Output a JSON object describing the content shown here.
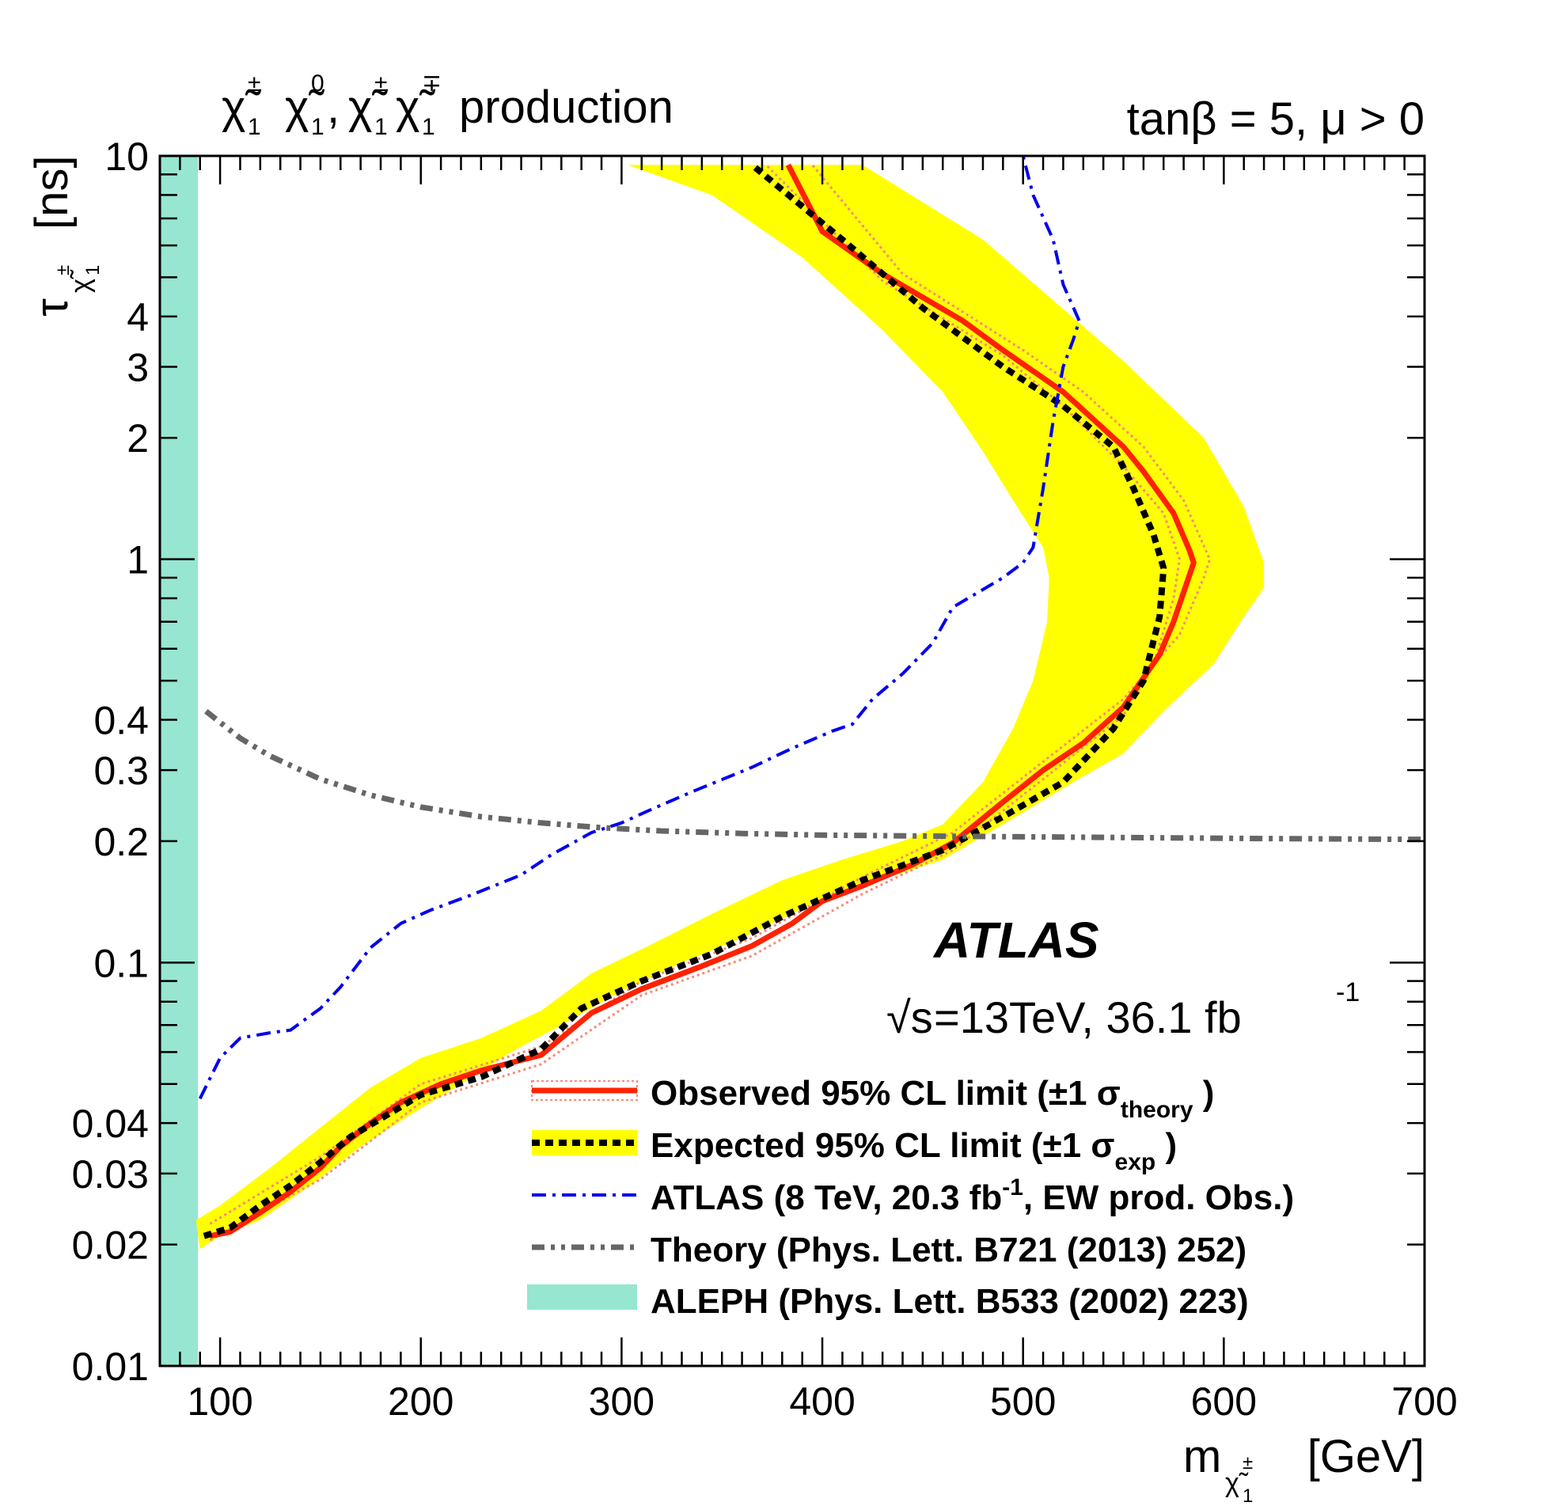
{
  "chart_data": {
    "type": "line",
    "title": "production",
    "subtitle": "tanβ = 5, μ > 0",
    "experiment": "ATLAS",
    "energy_lumi": "=13TeV, 36.1 fb",
    "energy_sqrt_prefix": "√s",
    "energy_lumi_exponent": "-1",
    "xlabel_base": "m",
    "xlabel_unit": "[GeV]",
    "ylabel_base": "τ",
    "ylabel_unit": "[ns]",
    "xlim": [
      70,
      700
    ],
    "ylim": [
      0.01,
      10
    ],
    "yscale": "log",
    "x_ticks": [
      "100",
      "200",
      "300",
      "400",
      "500",
      "600",
      "700"
    ],
    "y_ticks": [
      {
        "value": 0.01,
        "label": "0.01"
      },
      {
        "value": 0.02,
        "label": "0.02"
      },
      {
        "value": 0.03,
        "label": "0.03"
      },
      {
        "value": 0.04,
        "label": "0.04"
      },
      {
        "value": 0.1,
        "label": "0.1"
      },
      {
        "value": 0.2,
        "label": "0.2"
      },
      {
        "value": 0.3,
        "label": "0.3"
      },
      {
        "value": 0.4,
        "label": "0.4"
      },
      {
        "value": 1,
        "label": "1"
      },
      {
        "value": 2,
        "label": "2"
      },
      {
        "value": 3,
        "label": "3"
      },
      {
        "value": 4,
        "label": "4"
      },
      {
        "value": 10,
        "label": "10"
      }
    ],
    "aleph_band": {
      "x_from": 70,
      "x_to": 89,
      "color": "#96e6d1"
    },
    "expected_band_outer": [
      [
        303,
        9.5
      ],
      [
        380,
        9.5
      ],
      [
        420,
        9.5
      ],
      [
        480,
        6.2
      ],
      [
        550,
        3.1
      ],
      [
        590,
        2.0
      ],
      [
        610,
        1.35
      ],
      [
        620,
        0.98
      ],
      [
        620,
        0.85
      ],
      [
        610,
        0.72
      ],
      [
        595,
        0.55
      ],
      [
        570,
        0.42
      ],
      [
        550,
        0.33
      ],
      [
        525,
        0.28
      ],
      [
        490,
        0.22
      ],
      [
        460,
        0.18
      ],
      [
        420,
        0.155
      ],
      [
        395,
        0.14
      ],
      [
        360,
        0.115
      ],
      [
        330,
        0.1
      ],
      [
        300,
        0.085
      ],
      [
        270,
        0.07
      ],
      [
        245,
        0.06
      ],
      [
        220,
        0.05
      ],
      [
        195,
        0.042
      ],
      [
        170,
        0.035
      ],
      [
        145,
        0.028
      ],
      [
        120,
        0.023
      ],
      [
        100,
        0.021
      ],
      [
        90,
        0.0195
      ]
    ],
    "expected_band_inner": [
      [
        88,
        0.023
      ],
      [
        100,
        0.025
      ],
      [
        125,
        0.031
      ],
      [
        150,
        0.039
      ],
      [
        175,
        0.049
      ],
      [
        200,
        0.058
      ],
      [
        230,
        0.065
      ],
      [
        260,
        0.076
      ],
      [
        285,
        0.094
      ],
      [
        315,
        0.111
      ],
      [
        345,
        0.132
      ],
      [
        380,
        0.16
      ],
      [
        410,
        0.18
      ],
      [
        440,
        0.2
      ],
      [
        460,
        0.22
      ],
      [
        480,
        0.28
      ],
      [
        495,
        0.38
      ],
      [
        505,
        0.5
      ],
      [
        512,
        0.7
      ],
      [
        513,
        0.9
      ],
      [
        510,
        1.07
      ],
      [
        495,
        1.4
      ],
      [
        480,
        1.85
      ],
      [
        460,
        2.6
      ],
      [
        430,
        3.7
      ],
      [
        390,
        5.6
      ],
      [
        345,
        8.0
      ],
      [
        303,
        9.5
      ]
    ],
    "series": [
      {
        "name": "Observed 95% CL limit",
        "color": "#ff2200",
        "style": "solid",
        "points": [
          [
            95,
            0.021
          ],
          [
            105,
            0.0215
          ],
          [
            120,
            0.024
          ],
          [
            135,
            0.027
          ],
          [
            150,
            0.031
          ],
          [
            160,
            0.035
          ],
          [
            175,
            0.04
          ],
          [
            190,
            0.045
          ],
          [
            210,
            0.05
          ],
          [
            230,
            0.054
          ],
          [
            260,
            0.059
          ],
          [
            285,
            0.075
          ],
          [
            310,
            0.086
          ],
          [
            340,
            0.098
          ],
          [
            365,
            0.11
          ],
          [
            385,
            0.125
          ],
          [
            400,
            0.142
          ],
          [
            420,
            0.155
          ],
          [
            445,
            0.175
          ],
          [
            465,
            0.198
          ],
          [
            490,
            0.25
          ],
          [
            510,
            0.3
          ],
          [
            530,
            0.35
          ],
          [
            550,
            0.43
          ],
          [
            568,
            0.58
          ],
          [
            575,
            0.7
          ],
          [
            585,
            0.98
          ],
          [
            583,
            1.05
          ],
          [
            575,
            1.3
          ],
          [
            560,
            1.65
          ],
          [
            550,
            1.9
          ],
          [
            520,
            2.6
          ],
          [
            490,
            3.3
          ],
          [
            470,
            3.9
          ],
          [
            430,
            5.1
          ],
          [
            400,
            6.5
          ],
          [
            383,
            9.5
          ]
        ]
      },
      {
        "name": "Observed ±1σ theory (upper)",
        "color": "#f78a78",
        "style": "dotted",
        "points": [
          [
            95,
            0.0225
          ],
          [
            150,
            0.033
          ],
          [
            200,
            0.05
          ],
          [
            260,
            0.062
          ],
          [
            310,
            0.09
          ],
          [
            365,
            0.115
          ],
          [
            420,
            0.163
          ],
          [
            465,
            0.21
          ],
          [
            510,
            0.315
          ],
          [
            550,
            0.45
          ],
          [
            578,
            0.65
          ],
          [
            590,
            0.9
          ],
          [
            593,
            1.0
          ],
          [
            580,
            1.4
          ],
          [
            560,
            1.9
          ],
          [
            530,
            2.6
          ],
          [
            500,
            3.3
          ],
          [
            440,
            5.1
          ],
          [
            395,
            9.5
          ]
        ]
      },
      {
        "name": "Observed ±1σ theory (lower)",
        "color": "#f78a78",
        "style": "dotted",
        "points": [
          [
            95,
            0.0205
          ],
          [
            150,
            0.029
          ],
          [
            200,
            0.045
          ],
          [
            260,
            0.056
          ],
          [
            310,
            0.083
          ],
          [
            365,
            0.104
          ],
          [
            420,
            0.148
          ],
          [
            465,
            0.19
          ],
          [
            510,
            0.285
          ],
          [
            550,
            0.41
          ],
          [
            565,
            0.55
          ],
          [
            575,
            0.8
          ],
          [
            578,
            1.0
          ],
          [
            570,
            1.3
          ],
          [
            550,
            1.7
          ],
          [
            520,
            2.4
          ],
          [
            490,
            3.2
          ],
          [
            430,
            4.9
          ],
          [
            372,
            9.5
          ]
        ]
      },
      {
        "name": "Expected 95% CL limit",
        "color": "#000000",
        "style": "dashed",
        "points": [
          [
            92,
            0.021
          ],
          [
            105,
            0.022
          ],
          [
            120,
            0.025
          ],
          [
            135,
            0.028
          ],
          [
            150,
            0.032
          ],
          [
            165,
            0.037
          ],
          [
            180,
            0.041
          ],
          [
            200,
            0.047
          ],
          [
            230,
            0.052
          ],
          [
            260,
            0.061
          ],
          [
            280,
            0.077
          ],
          [
            310,
            0.09
          ],
          [
            345,
            0.105
          ],
          [
            380,
            0.13
          ],
          [
            420,
            0.16
          ],
          [
            460,
            0.19
          ],
          [
            490,
            0.23
          ],
          [
            520,
            0.28
          ],
          [
            545,
            0.38
          ],
          [
            560,
            0.5
          ],
          [
            568,
            0.72
          ],
          [
            570,
            0.95
          ],
          [
            565,
            1.15
          ],
          [
            555,
            1.5
          ],
          [
            545,
            1.9
          ],
          [
            520,
            2.4
          ],
          [
            490,
            3.0
          ],
          [
            450,
            4.2
          ],
          [
            410,
            6.2
          ],
          [
            365,
            9.5
          ]
        ]
      },
      {
        "name": "ATLAS (8 TeV, 20.3 fb⁻¹, EW prod. Obs.)",
        "color": "#0000ee",
        "style": "dashdot",
        "points": [
          [
            90,
            0.046
          ],
          [
            100,
            0.058
          ],
          [
            110,
            0.065
          ],
          [
            125,
            0.067
          ],
          [
            135,
            0.068
          ],
          [
            150,
            0.077
          ],
          [
            160,
            0.087
          ],
          [
            175,
            0.109
          ],
          [
            190,
            0.125
          ],
          [
            205,
            0.135
          ],
          [
            225,
            0.147
          ],
          [
            250,
            0.165
          ],
          [
            265,
            0.185
          ],
          [
            285,
            0.21
          ],
          [
            300,
            0.222
          ],
          [
            315,
            0.24
          ],
          [
            335,
            0.265
          ],
          [
            365,
            0.305
          ],
          [
            385,
            0.34
          ],
          [
            405,
            0.375
          ],
          [
            415,
            0.39
          ],
          [
            425,
            0.45
          ],
          [
            440,
            0.52
          ],
          [
            455,
            0.62
          ],
          [
            465,
            0.76
          ],
          [
            490,
            0.9
          ],
          [
            500,
            0.98
          ],
          [
            505,
            1.07
          ],
          [
            510,
            1.5
          ],
          [
            515,
            2.2
          ],
          [
            520,
            3.0
          ],
          [
            525,
            3.5
          ],
          [
            528,
            3.9
          ],
          [
            520,
            4.8
          ],
          [
            515,
            6.2
          ],
          [
            505,
            8.0
          ],
          [
            500,
            10
          ]
        ]
      },
      {
        "name": "Theory (Phys. Lett. B721 (2013) 252)",
        "color": "#666666",
        "style": "dashdotdot",
        "points": [
          [
            93,
            0.42
          ],
          [
            110,
            0.36
          ],
          [
            125,
            0.325
          ],
          [
            150,
            0.285
          ],
          [
            175,
            0.26
          ],
          [
            200,
            0.243
          ],
          [
            230,
            0.23
          ],
          [
            260,
            0.222
          ],
          [
            290,
            0.216
          ],
          [
            320,
            0.212
          ],
          [
            360,
            0.209
          ],
          [
            400,
            0.207
          ],
          [
            450,
            0.206
          ],
          [
            500,
            0.205
          ],
          [
            560,
            0.204
          ],
          [
            620,
            0.203
          ],
          [
            700,
            0.202
          ]
        ]
      }
    ],
    "legend": [
      {
        "main": "Observed 95% CL limit (±1 σ",
        "sub": "theory",
        "tail": " )"
      },
      {
        "main": "Expected 95% CL limit (±1 σ",
        "sub": "exp",
        "tail": " )"
      },
      {
        "main": "ATLAS (8 TeV, 20.3 fb",
        "sup": "-1",
        "tail": ", EW prod. Obs.)"
      },
      {
        "main": "Theory (Phys. Lett. B721 (2013) 252)"
      },
      {
        "main": "ALEPH (Phys. Lett. B533 (2002) 223)"
      }
    ],
    "colors": {
      "band": "#ffff00",
      "aleph": "#96e6d1",
      "observed": "#ff2200",
      "theory_band": "#f78a78",
      "expected": "#000000",
      "atlas8": "#0000ee",
      "theory": "#666666"
    }
  }
}
